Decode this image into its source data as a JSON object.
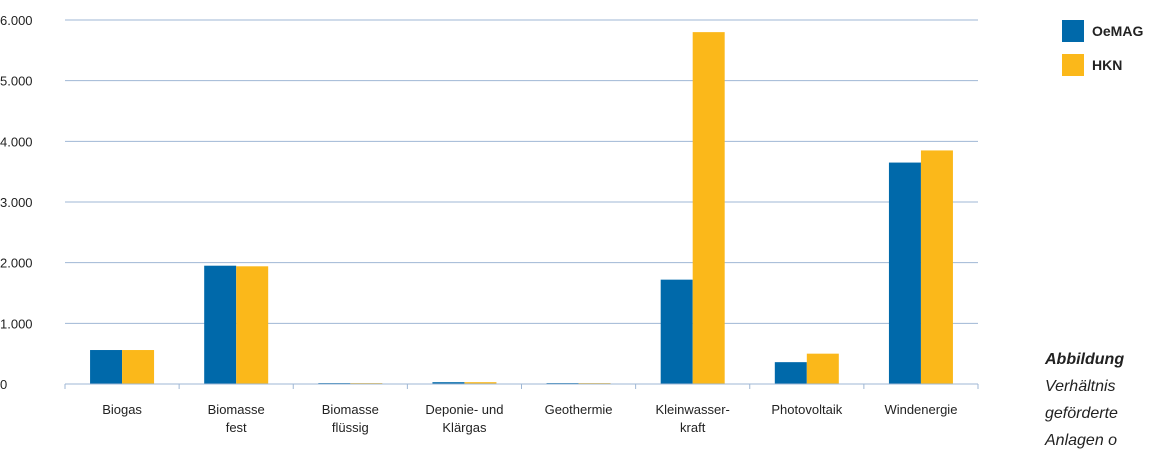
{
  "chart_data": {
    "type": "bar",
    "categories": [
      [
        "Biogas"
      ],
      [
        "Biomasse",
        "fest"
      ],
      [
        "Biomasse",
        "flüssig"
      ],
      [
        "Deponie- und",
        "Klärgas"
      ],
      [
        "Geothermie"
      ],
      [
        "Kleinwasser-",
        "kraft"
      ],
      [
        "Photovoltaik"
      ],
      [
        "Windenergie"
      ]
    ],
    "series": [
      {
        "name": "OeMAG",
        "color": "#0069aa",
        "values": [
          560,
          1950,
          15,
          30,
          15,
          1720,
          360,
          3650
        ]
      },
      {
        "name": "HKN",
        "color": "#fbb81a",
        "values": [
          560,
          1940,
          15,
          30,
          15,
          5800,
          500,
          3850
        ]
      }
    ],
    "yticks": [
      "0",
      "1.000",
      "2.000",
      "3.000",
      "4.000",
      "5.000",
      "6.000"
    ],
    "ylim": [
      0,
      6000
    ],
    "grid": true,
    "legend_position": "top-right",
    "title": "",
    "xlabel": "",
    "ylabel": ""
  },
  "caption": {
    "title": "Abbildung",
    "lines": [
      "Verhältnis",
      "geförderte",
      "Anlagen o"
    ]
  }
}
